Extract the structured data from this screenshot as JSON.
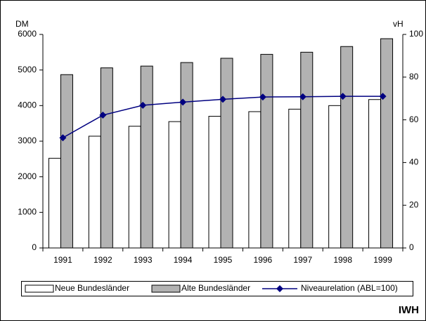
{
  "chart_data": {
    "type": "bar",
    "y_label": "DM",
    "y2_label": "vH",
    "source": "IWH",
    "categories": [
      "1991",
      "1992",
      "1993",
      "1994",
      "1995",
      "1996",
      "1997",
      "1998",
      "1999"
    ],
    "series": [
      {
        "name": "Neue Bundesländer",
        "type": "bar",
        "color": "#ffffff",
        "values": [
          2520,
          3140,
          3420,
          3550,
          3700,
          3830,
          3900,
          4000,
          4170
        ]
      },
      {
        "name": "Alte Bundesländer",
        "type": "bar",
        "color": "#b2b2b2",
        "values": [
          4870,
          5060,
          5110,
          5210,
          5330,
          5440,
          5500,
          5660,
          5880
        ]
      },
      {
        "name": "Niveaurelation (ABL=100)",
        "type": "line",
        "axis": "y2",
        "color": "#000080",
        "values": [
          51.6,
          62.2,
          66.8,
          68.3,
          69.6,
          70.7,
          70.8,
          71.0,
          71.0
        ]
      }
    ],
    "ylim": [
      0,
      6000
    ],
    "yticks": [
      0,
      1000,
      2000,
      3000,
      4000,
      5000,
      6000
    ],
    "y2lim": [
      0,
      100
    ],
    "y2ticks": [
      0,
      20,
      40,
      60,
      80,
      100
    ],
    "grid": false,
    "legend": "bottom"
  }
}
